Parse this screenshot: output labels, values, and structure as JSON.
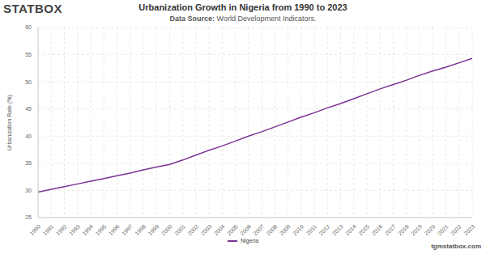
{
  "chart_data": {
    "type": "line",
    "title": "Urbanization Growth in Nigeria from 1990 to 2023",
    "subtitle": "Data Source: World Development Indicators.",
    "annotations": [
      "STATBOX",
      "tgmstatbox.com"
    ],
    "y_label": "Urbanization Rate (%)",
    "x": [
      1990,
      1991,
      1992,
      1993,
      1994,
      1995,
      1996,
      1997,
      1998,
      1999,
      2000,
      2001,
      2002,
      2003,
      2004,
      2005,
      2006,
      2007,
      2008,
      2009,
      2010,
      2011,
      2012,
      2013,
      2014,
      2015,
      2016,
      2017,
      2018,
      2019,
      2020,
      2021,
      2022,
      2023
    ],
    "series": [
      {
        "name": "Nigeria",
        "color": "#7b3294",
        "values": [
          29.7,
          30.2,
          30.7,
          31.2,
          31.7,
          32.2,
          32.7,
          33.2,
          33.8,
          34.3,
          34.8,
          35.6,
          36.5,
          37.4,
          38.2,
          39.1,
          40.0,
          40.8,
          41.7,
          42.6,
          43.5,
          44.3,
          45.2,
          46.0,
          46.9,
          47.8,
          48.7,
          49.5,
          50.3,
          51.2,
          52.0,
          52.7,
          53.5,
          54.3
        ]
      }
    ],
    "xlim": [
      1990,
      2023
    ],
    "xticks": [
      1990,
      1991,
      1992,
      1993,
      1994,
      1995,
      1996,
      1997,
      1998,
      1999,
      2000,
      2001,
      2002,
      2003,
      2004,
      2005,
      2006,
      2007,
      2008,
      2009,
      2010,
      2011,
      2012,
      2013,
      2014,
      2015,
      2016,
      2017,
      2018,
      2019,
      2020,
      2021,
      2022,
      2023
    ],
    "ylim": [
      25,
      60
    ],
    "yticks": [
      25,
      30,
      35,
      40,
      45,
      50,
      55,
      60
    ],
    "grid": true,
    "legend": "bottom"
  }
}
